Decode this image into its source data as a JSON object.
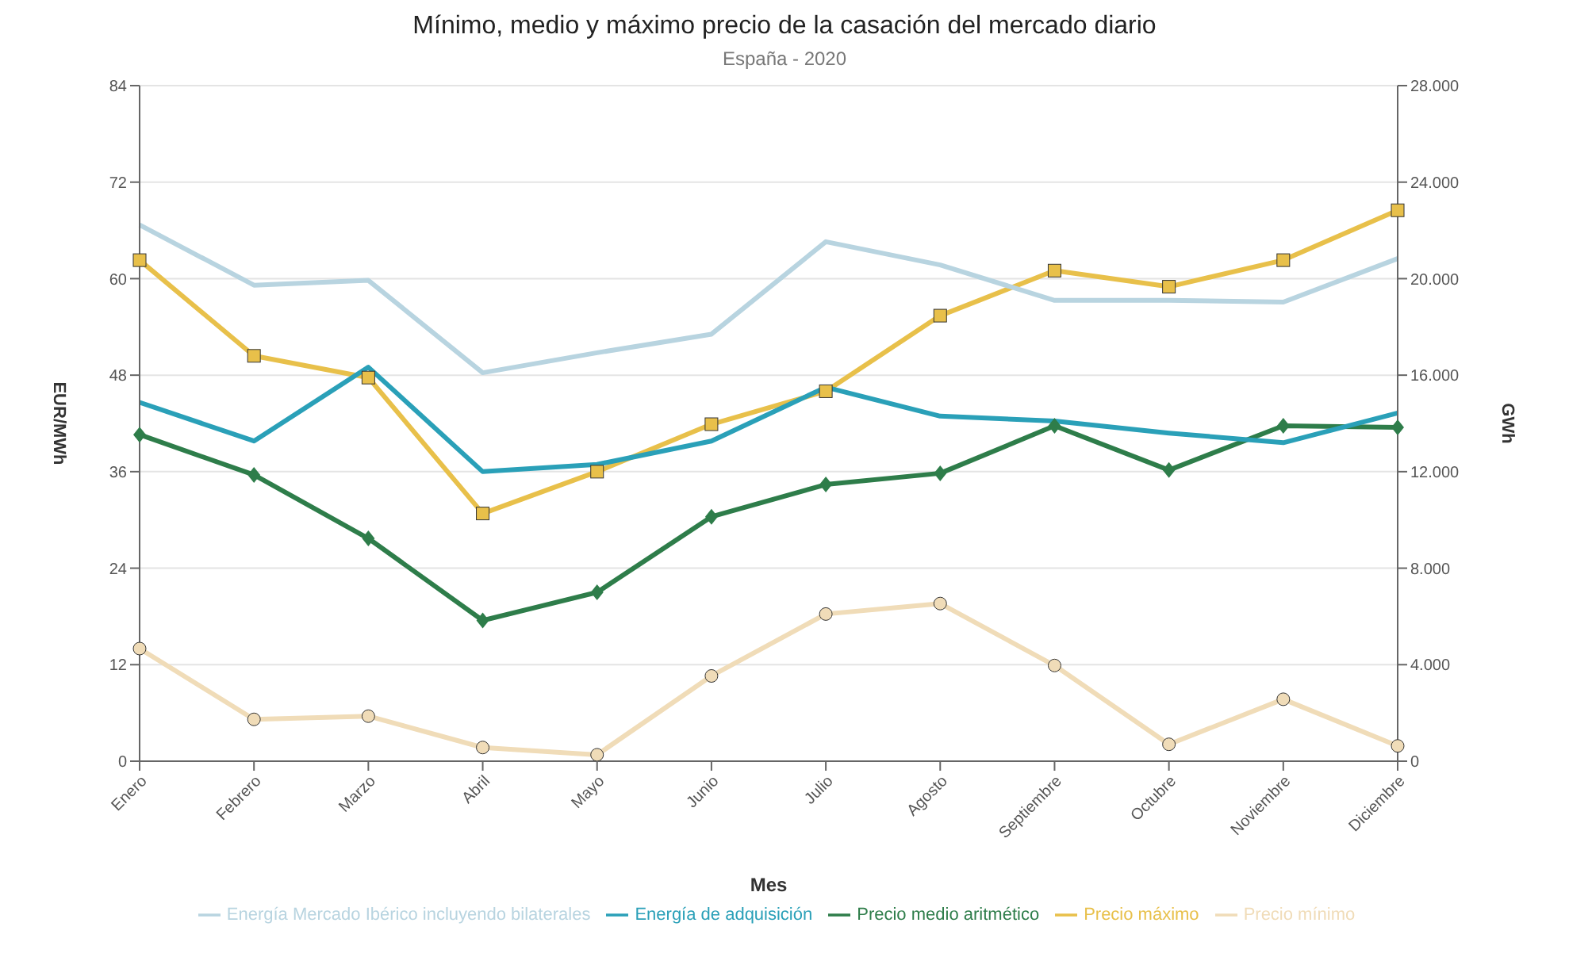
{
  "chart_data": {
    "type": "line",
    "title": "Mínimo, medio y máximo precio de la casación del mercado diario",
    "subtitle": "España - 2020",
    "xlabel": "Mes",
    "ylabel": "EUR/MWh",
    "y2label": "GWh",
    "categories": [
      "Enero",
      "Febrero",
      "Marzo",
      "Abril",
      "Mayo",
      "Junio",
      "Julio",
      "Agosto",
      "Septiembre",
      "Octubre",
      "Noviembre",
      "Diciembre"
    ],
    "series": [
      {
        "name": "Precio mínimo",
        "color": "#f0dcb8",
        "marker": "circle",
        "values": [
          14,
          5.2,
          5.6,
          1.7,
          0.8,
          10.6,
          18.3,
          19.6,
          11.9,
          2.1,
          7.7,
          1.9
        ]
      },
      {
        "name": "Precio medio aritmético",
        "color": "#2e7d4a",
        "marker": "diamond",
        "values": [
          40.6,
          35.6,
          27.7,
          17.5,
          21,
          30.4,
          34.4,
          35.8,
          41.7,
          36.2,
          41.7,
          41.5
        ]
      },
      {
        "name": "Precio máximo",
        "color": "#e8c04a",
        "marker": "square",
        "values": [
          62.3,
          50.4,
          47.7,
          30.8,
          36,
          41.9,
          46,
          55.4,
          61,
          59,
          62.3,
          68.5
        ]
      },
      {
        "name": "Energía de adquisición",
        "color": "#2aa0b8",
        "marker": "none",
        "axis": "y2",
        "values": [
          14870,
          13270,
          16330,
          12000,
          12300,
          13270,
          15500,
          14300,
          14100,
          13600,
          13200,
          14430
        ]
      },
      {
        "name": "Energía Mercado Ibérico incluyendo bilaterales",
        "color": "#b8d4e0",
        "marker": "none",
        "axis": "y2",
        "values": [
          22230,
          19730,
          19930,
          16100,
          16930,
          17700,
          21530,
          20570,
          19100,
          19100,
          19030,
          20830
        ]
      }
    ],
    "ylim": [
      0,
      84
    ],
    "yticks": [
      0,
      12,
      24,
      36,
      48,
      60,
      72,
      84
    ],
    "y2lim": [
      0,
      28000
    ],
    "y2ticks": [
      {
        "value": 0,
        "label": "0"
      },
      {
        "value": 4000,
        "label": "4.000"
      },
      {
        "value": 8000,
        "label": "8.000"
      },
      {
        "value": 12000,
        "label": "12.000"
      },
      {
        "value": 16000,
        "label": "16.000"
      },
      {
        "value": 20000,
        "label": "20.000"
      },
      {
        "value": 24000,
        "label": "24.000"
      },
      {
        "value": 28000,
        "label": "28.000"
      }
    ],
    "grid": "y",
    "legend": "bottom",
    "line_style": "solid"
  }
}
